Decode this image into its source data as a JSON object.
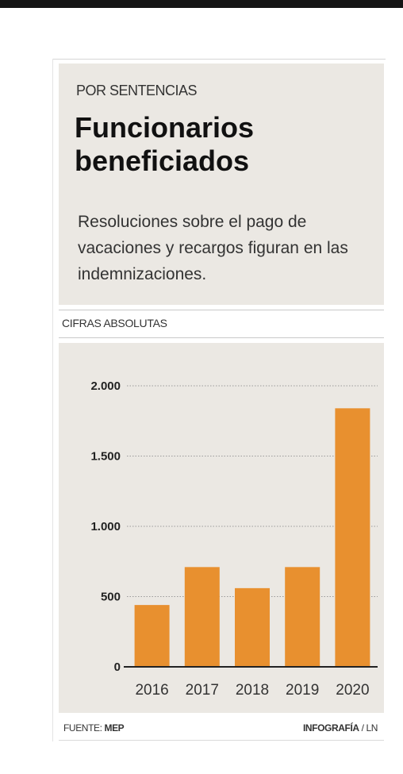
{
  "kicker": "POR SENTENCIAS",
  "title": "Funcionarios beneficiados",
  "subtitle": "Resoluciones sobre el pago de vacaciones y recargos figuran en las indemnizaciones.",
  "section_label": "CIFRAS ABSOLUTAS",
  "footer": {
    "source_prefix": "FUENTE:",
    "source_name": "MEP",
    "credit_name": "INFOGRAFÍA",
    "credit_suffix": " / LN"
  },
  "colors": {
    "bar": "#e8902f",
    "panel": "#ebe8e3",
    "grid": "#9a9a9a"
  },
  "chart_data": {
    "type": "bar",
    "categories": [
      "2016",
      "2017",
      "2018",
      "2019",
      "2020"
    ],
    "values": [
      440,
      710,
      560,
      710,
      1840
    ],
    "ylim": [
      0,
      2000
    ],
    "yticks": [
      0,
      500,
      1000,
      1500,
      2000
    ],
    "ytick_labels": [
      "0",
      "500",
      "1.000",
      "1.500",
      "2.000"
    ],
    "grid": "dotted horizontal",
    "legend": "none"
  }
}
